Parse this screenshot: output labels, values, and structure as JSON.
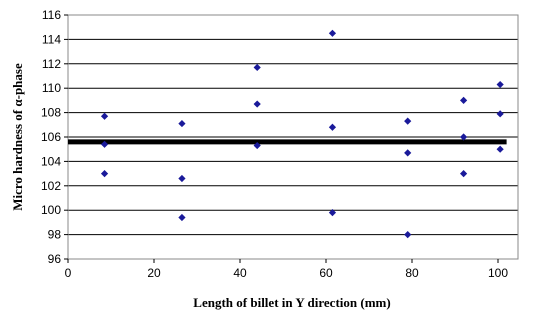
{
  "chart_data": {
    "type": "scatter",
    "title": "",
    "xlabel": "Length of billet in Y direction (mm)",
    "ylabel": "Micro hardness of α-phase",
    "xlim": [
      0,
      100
    ],
    "ylim": [
      96,
      116
    ],
    "xticks": [
      0,
      20,
      40,
      60,
      80,
      100
    ],
    "yticks": [
      96,
      98,
      100,
      102,
      104,
      106,
      108,
      110,
      112,
      114,
      116
    ],
    "grid": "horizontal",
    "marker_color": "#1a1a9a",
    "mean_line_color": "#000000",
    "mean_line": {
      "x": [
        0,
        102
      ],
      "y": [
        105.6,
        105.6
      ]
    },
    "series": [
      {
        "points": [
          {
            "x": 8.5,
            "y": 107.7
          },
          {
            "x": 8.5,
            "y": 105.4
          },
          {
            "x": 8.5,
            "y": 103.0
          },
          {
            "x": 26.5,
            "y": 107.1
          },
          {
            "x": 26.5,
            "y": 102.6
          },
          {
            "x": 26.5,
            "y": 99.4
          },
          {
            "x": 44.0,
            "y": 111.7
          },
          {
            "x": 44.0,
            "y": 108.7
          },
          {
            "x": 44.0,
            "y": 105.3
          },
          {
            "x": 61.5,
            "y": 114.5
          },
          {
            "x": 61.5,
            "y": 106.8
          },
          {
            "x": 61.5,
            "y": 99.8
          },
          {
            "x": 79.0,
            "y": 107.3
          },
          {
            "x": 79.0,
            "y": 104.7
          },
          {
            "x": 79.0,
            "y": 98.0
          },
          {
            "x": 92.0,
            "y": 109.0
          },
          {
            "x": 92.0,
            "y": 106.0
          },
          {
            "x": 92.0,
            "y": 103.0
          },
          {
            "x": 100.5,
            "y": 110.3
          },
          {
            "x": 100.5,
            "y": 107.9
          },
          {
            "x": 100.5,
            "y": 105.0
          }
        ]
      }
    ]
  }
}
